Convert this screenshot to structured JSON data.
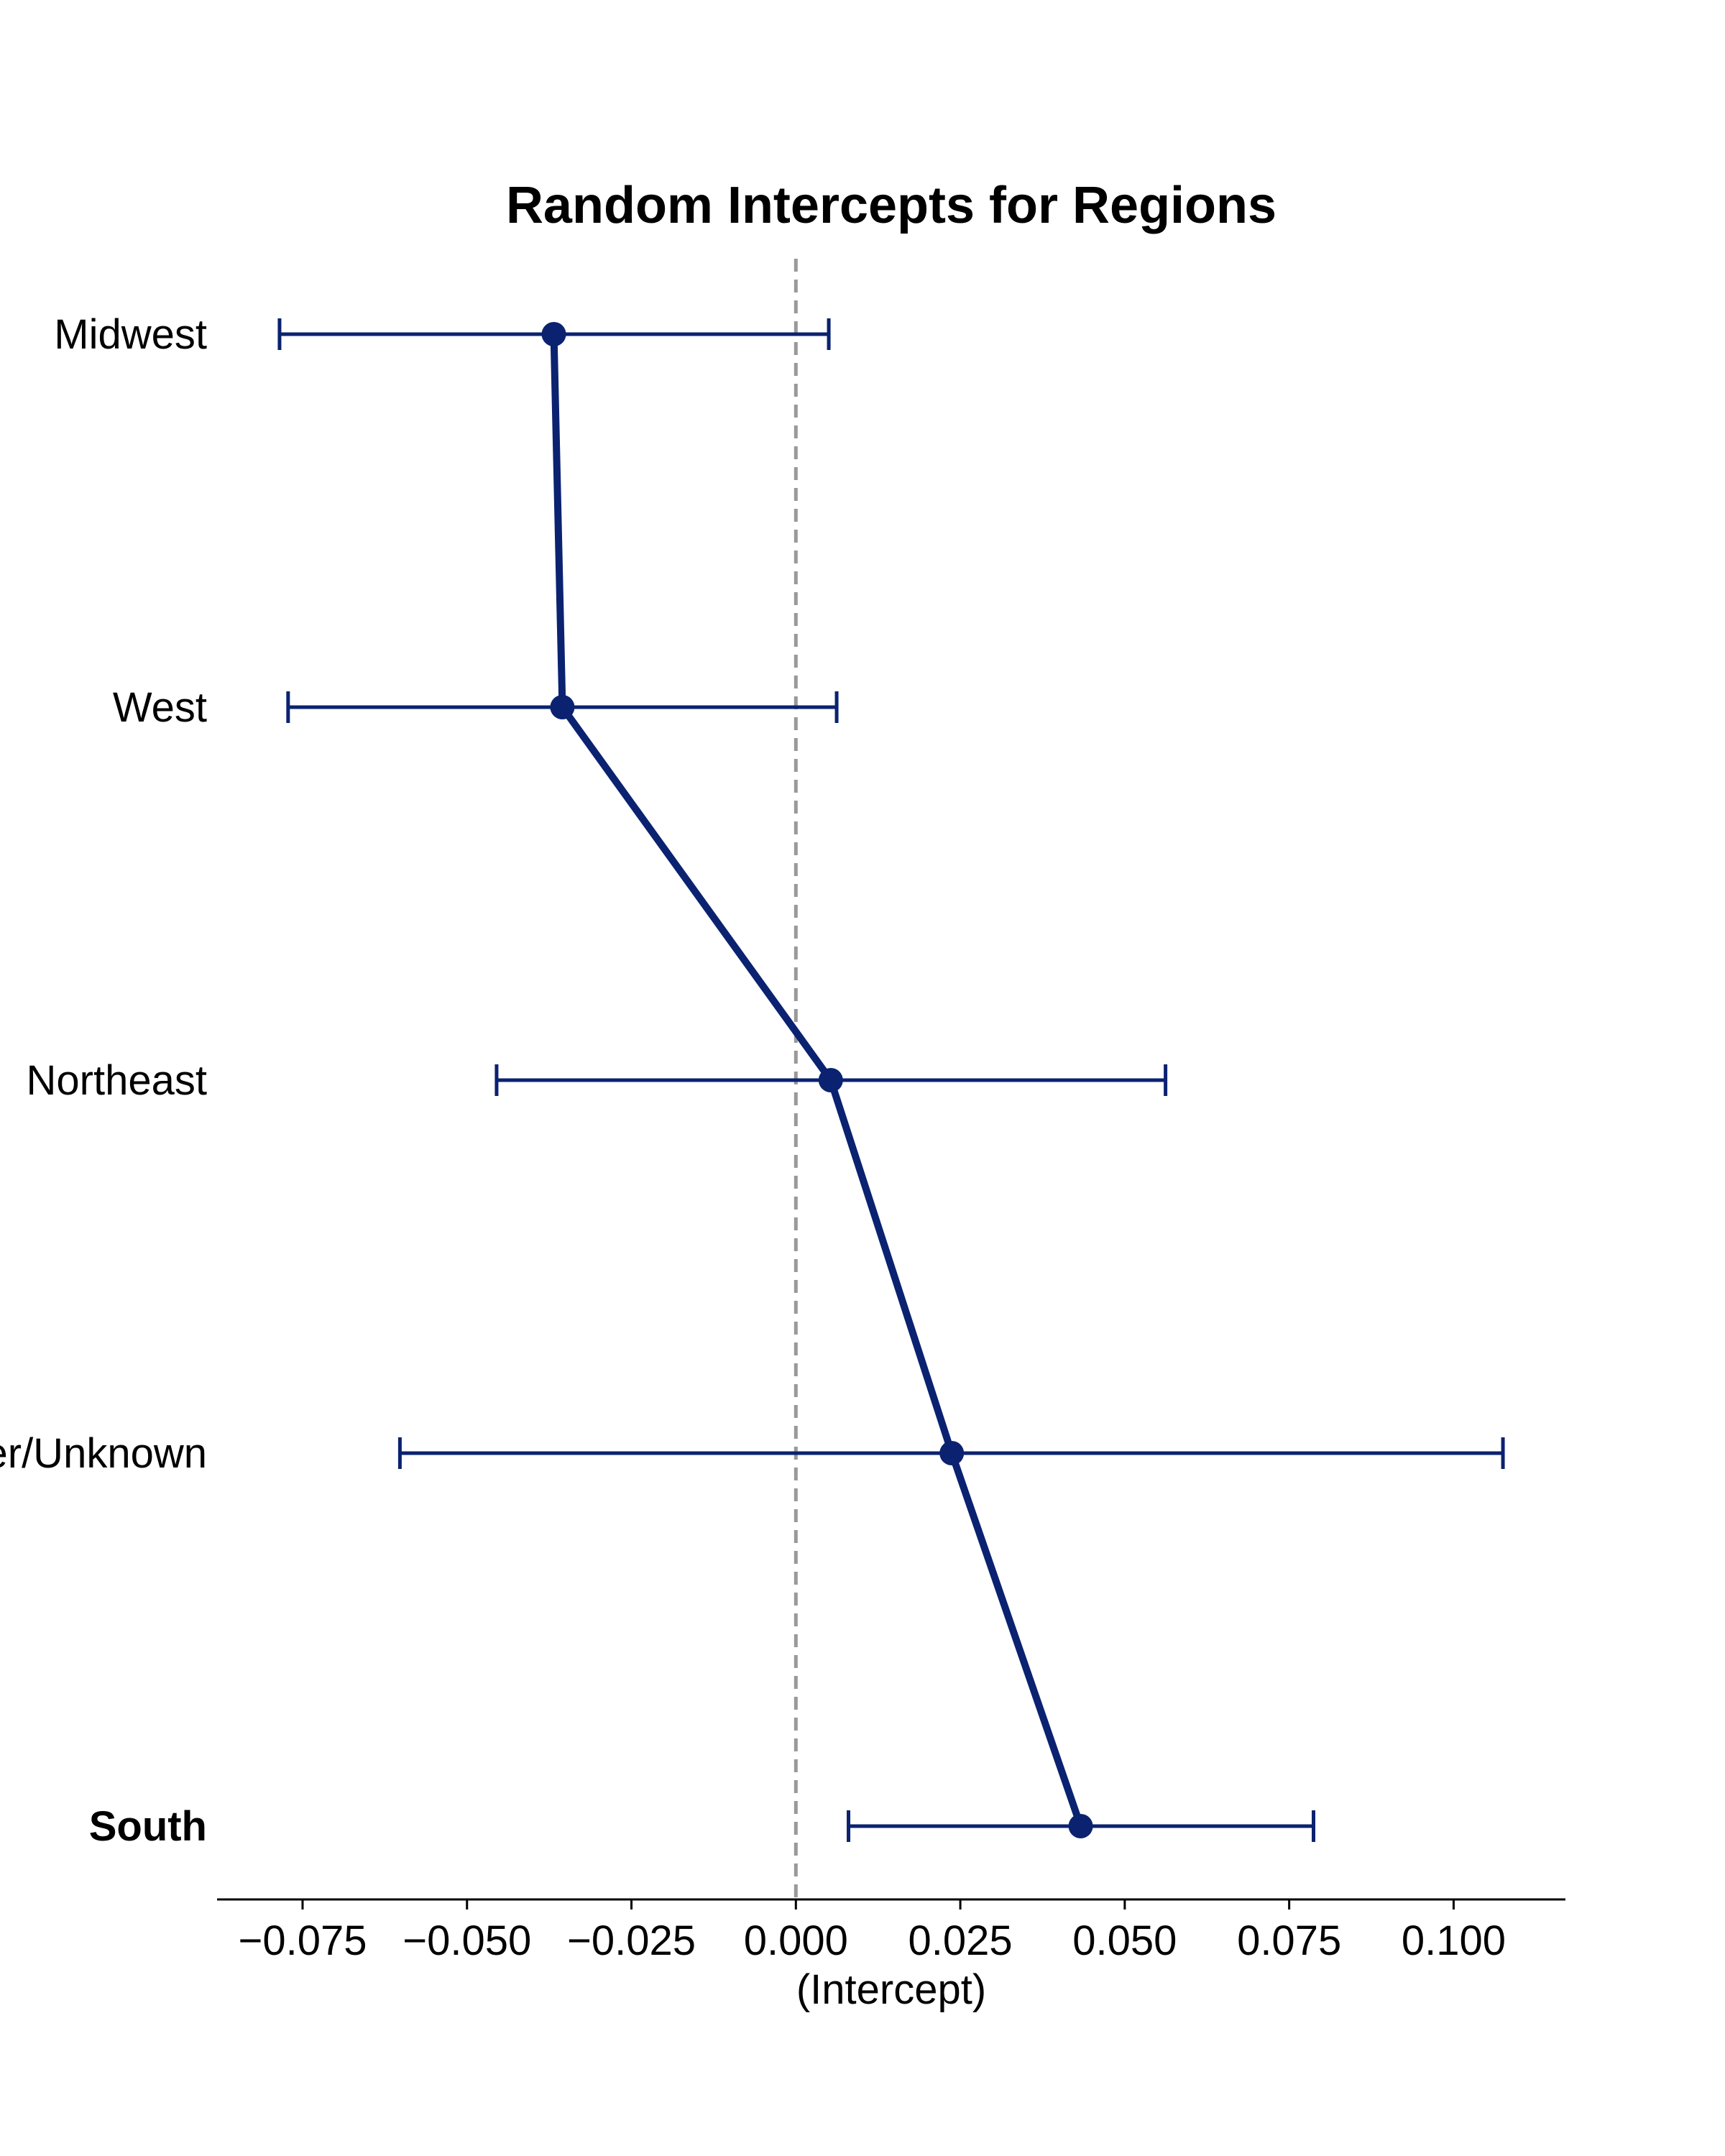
{
  "chart_data": {
    "type": "scatter",
    "title": "Random Intercepts for Regions",
    "xlabel": "(Intercept)",
    "ylabel": "",
    "xlim": [
      -0.088,
      0.117
    ],
    "x_ticks": [
      -0.075,
      -0.05,
      -0.025,
      0.0,
      0.025,
      0.05,
      0.075,
      0.1
    ],
    "x_tick_labels": [
      "−0.075",
      "−0.050",
      "−0.025",
      "0.000",
      "0.025",
      "0.050",
      "0.075",
      "0.100"
    ],
    "reference_line_x": 0.0,
    "grid": false,
    "categories": [
      "Midwest",
      "West",
      "Northeast",
      "Other/Unknown",
      "South"
    ],
    "highlighted_category": "South",
    "series": [
      {
        "values": [
          -0.0368,
          -0.0355,
          0.0053,
          0.0237,
          0.0433
        ],
        "ci_lower": [
          -0.0785,
          -0.0772,
          -0.0455,
          -0.0602,
          0.008
        ],
        "ci_upper": [
          0.005,
          0.0062,
          0.0562,
          0.1075,
          0.0787
        ]
      }
    ],
    "colors": {
      "series": "#0a2270",
      "reference_line": "#999999",
      "axis": "#000000"
    }
  }
}
